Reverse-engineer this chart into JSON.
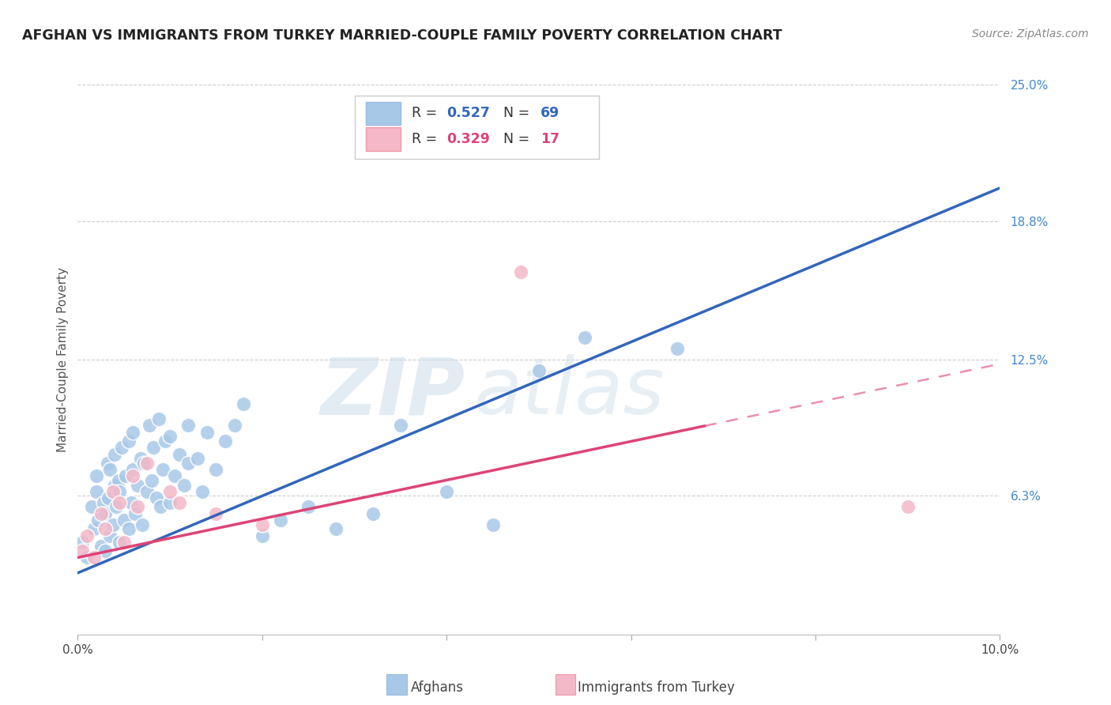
{
  "title": "AFGHAN VS IMMIGRANTS FROM TURKEY MARRIED-COUPLE FAMILY POVERTY CORRELATION CHART",
  "source": "Source: ZipAtlas.com",
  "ylabel": "Married-Couple Family Poverty",
  "xlim": [
    0,
    10.0
  ],
  "ylim": [
    0,
    25.0
  ],
  "xtick_positions": [
    0,
    2.0,
    4.0,
    6.0,
    8.0,
    10.0
  ],
  "xticklabels": [
    "0.0%",
    "",
    "",
    "",
    "",
    "10.0%"
  ],
  "ytick_positions": [
    6.3,
    12.5,
    18.8,
    25.0
  ],
  "ytick_labels": [
    "6.3%",
    "12.5%",
    "18.8%",
    "25.0%"
  ],
  "blue_R": 0.527,
  "blue_N": 69,
  "pink_R": 0.329,
  "pink_N": 17,
  "blue_fill_color": "#a8c8e8",
  "pink_fill_color": "#f4b8c8",
  "blue_edge_color": "#a8c8e8",
  "pink_edge_color": "#f4b8c8",
  "blue_line_color": "#3366bb",
  "pink_line_color": "#dd4477",
  "blue_scatter_x": [
    0.05,
    0.1,
    0.15,
    0.18,
    0.2,
    0.2,
    0.22,
    0.25,
    0.28,
    0.3,
    0.3,
    0.32,
    0.33,
    0.35,
    0.35,
    0.38,
    0.4,
    0.4,
    0.42,
    0.44,
    0.45,
    0.45,
    0.48,
    0.5,
    0.52,
    0.55,
    0.55,
    0.58,
    0.6,
    0.6,
    0.62,
    0.65,
    0.68,
    0.7,
    0.72,
    0.75,
    0.78,
    0.8,
    0.82,
    0.85,
    0.88,
    0.9,
    0.92,
    0.95,
    1.0,
    1.0,
    1.05,
    1.1,
    1.15,
    1.2,
    1.2,
    1.3,
    1.35,
    1.4,
    1.5,
    1.6,
    1.7,
    1.8,
    2.0,
    2.2,
    2.5,
    2.8,
    3.2,
    3.5,
    4.0,
    4.5,
    5.0,
    5.5,
    6.5
  ],
  "blue_scatter_y": [
    4.2,
    3.5,
    5.8,
    4.8,
    6.5,
    7.2,
    5.2,
    4.0,
    6.0,
    3.8,
    5.5,
    7.8,
    6.2,
    4.5,
    7.5,
    5.0,
    6.8,
    8.2,
    5.8,
    7.0,
    4.2,
    6.5,
    8.5,
    5.2,
    7.2,
    4.8,
    8.8,
    6.0,
    7.5,
    9.2,
    5.5,
    6.8,
    8.0,
    5.0,
    7.8,
    6.5,
    9.5,
    7.0,
    8.5,
    6.2,
    9.8,
    5.8,
    7.5,
    8.8,
    6.0,
    9.0,
    7.2,
    8.2,
    6.8,
    9.5,
    7.8,
    8.0,
    6.5,
    9.2,
    7.5,
    8.8,
    9.5,
    10.5,
    4.5,
    5.2,
    5.8,
    4.8,
    5.5,
    9.5,
    6.5,
    5.0,
    12.0,
    13.5,
    13.0
  ],
  "pink_scatter_x": [
    0.05,
    0.1,
    0.18,
    0.25,
    0.3,
    0.38,
    0.45,
    0.5,
    0.6,
    0.65,
    0.75,
    1.0,
    1.1,
    1.5,
    2.0,
    4.8,
    9.0
  ],
  "pink_scatter_y": [
    3.8,
    4.5,
    3.5,
    5.5,
    4.8,
    6.5,
    6.0,
    4.2,
    7.2,
    5.8,
    7.8,
    6.5,
    6.0,
    5.5,
    5.0,
    16.5,
    5.8
  ],
  "blue_line_y_intercept": 2.8,
  "blue_line_slope": 1.75,
  "pink_line_y_intercept": 3.5,
  "pink_line_slope": 0.88,
  "pink_line_solid_end": 6.8,
  "watermark_zip_color": "#ccdde8",
  "watermark_atlas_color": "#ccdde8",
  "legend_label_blue": "Afghans",
  "legend_label_pink": "Immigrants from Turkey"
}
